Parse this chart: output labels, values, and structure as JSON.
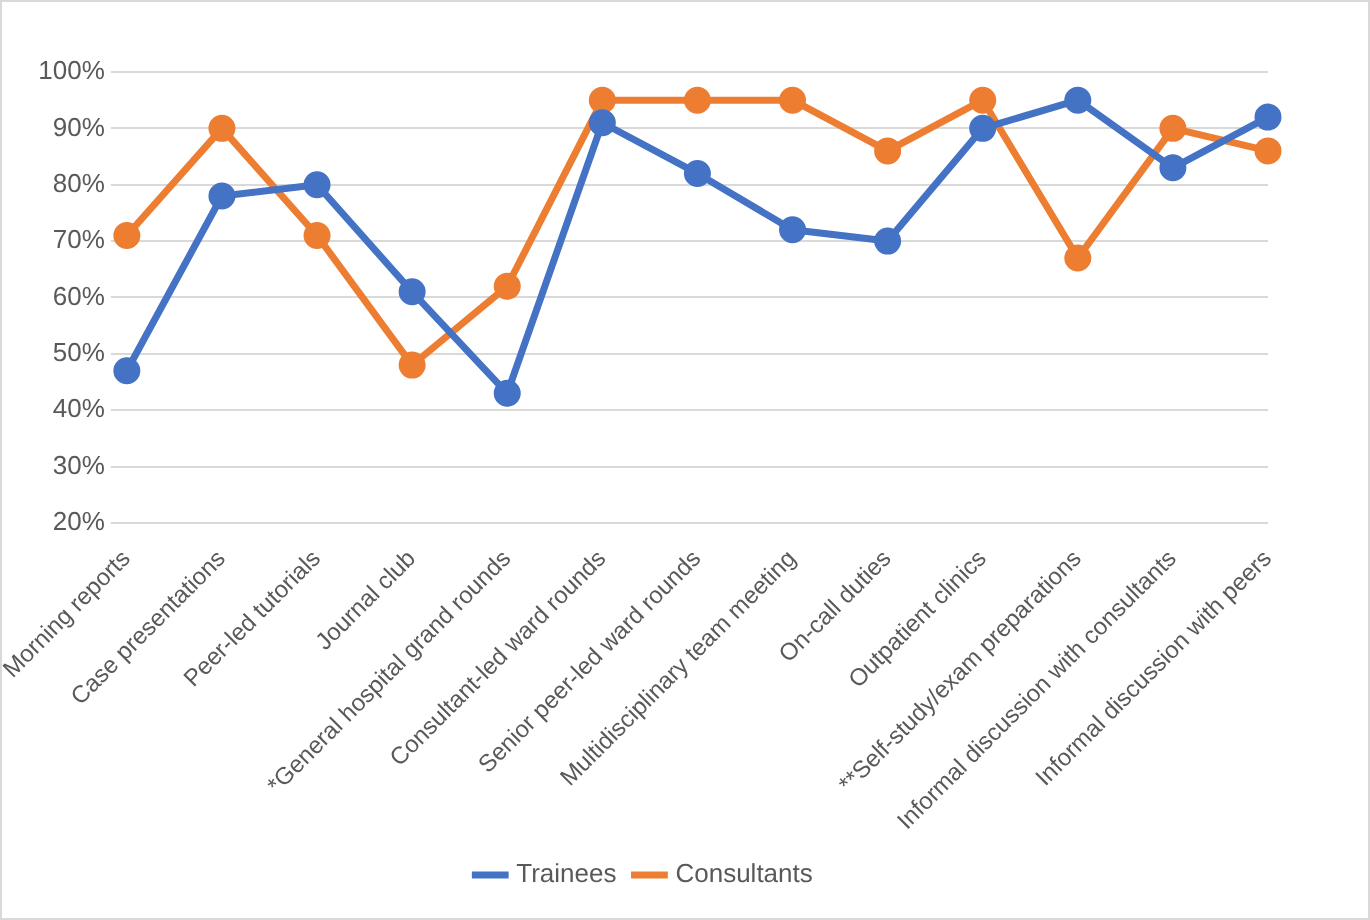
{
  "chart_data": {
    "type": "line",
    "categories": [
      "Morning reports",
      "Case presentations",
      "Peer-led tutorials",
      "Journal club",
      "*General hospital grand rounds",
      "Consultant-led ward rounds",
      "Senior peer-led ward rounds",
      "Multidisciplinary team meeting",
      "On-call duties",
      "Outpatient clinics",
      "**Self-study/exam preparations",
      "Informal discussion with consultants",
      "Informal discussion with peers"
    ],
    "series": [
      {
        "name": "Trainees",
        "color": "#4472c4",
        "values": [
          47,
          78,
          80,
          61,
          43,
          91,
          82,
          72,
          70,
          90,
          95,
          83,
          92
        ]
      },
      {
        "name": "Consultants",
        "color": "#ed7d31",
        "values": [
          71,
          90,
          71,
          48,
          62,
          95,
          95,
          95,
          86,
          95,
          67,
          90,
          86
        ]
      }
    ],
    "ylim": [
      20,
      100
    ],
    "yticks": [
      {
        "value": 20,
        "label": "20%"
      },
      {
        "value": 30,
        "label": "30%"
      },
      {
        "value": 40,
        "label": "40%"
      },
      {
        "value": 50,
        "label": "50%"
      },
      {
        "value": 60,
        "label": "60%"
      },
      {
        "value": 70,
        "label": "70%"
      },
      {
        "value": 80,
        "label": "80%"
      },
      {
        "value": 90,
        "label": "90%"
      },
      {
        "value": 100,
        "label": "100%"
      }
    ],
    "grid": "y",
    "legend": "bottom",
    "marker": "circle",
    "line_style": "solid"
  }
}
